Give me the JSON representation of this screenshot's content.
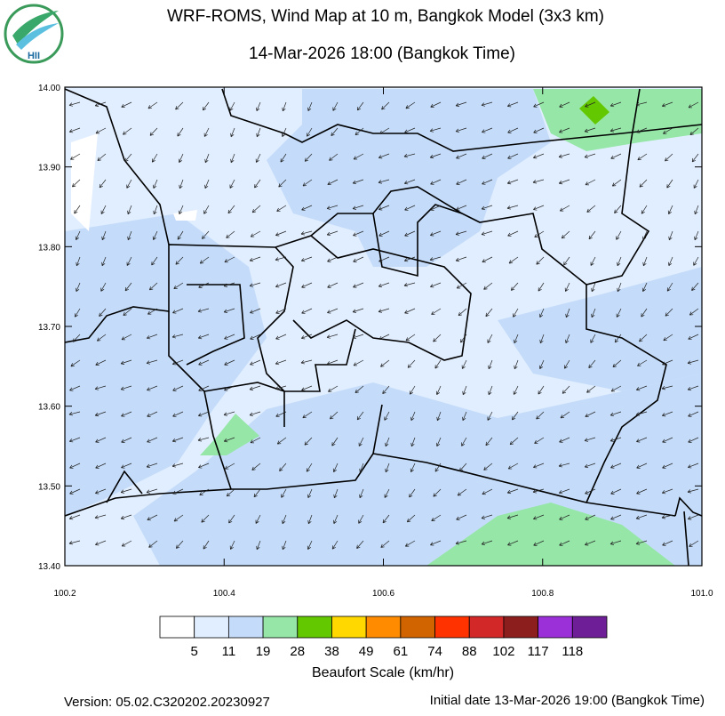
{
  "logo": {
    "text": "HII"
  },
  "header": {
    "title": "WRF-ROMS, Wind Map at 10 m, Bangkok Model (3x3 km)",
    "subtitle": "14-Mar-2026 18:00 (Bangkok Time)"
  },
  "map": {
    "xlim": [
      100.2,
      101.0
    ],
    "ylim": [
      13.4,
      14.0
    ],
    "xticks": [
      100.2,
      100.4,
      100.6,
      100.8,
      {
        "value": 101.0,
        "label": "101.0"
      }
    ],
    "yticks": [
      {
        "value": 14.0,
        "label": "14.00"
      },
      {
        "value": 13.9,
        "label": "13.90"
      },
      {
        "value": 13.8,
        "label": "13.80"
      },
      {
        "value": 13.7,
        "label": "13.70"
      },
      {
        "value": 13.6,
        "label": "13.60"
      },
      {
        "value": 13.5,
        "label": "13.50"
      },
      {
        "value": 13.4,
        "label": "13.40"
      }
    ]
  },
  "colorbar": {
    "title": "Beaufort Scale (km/hr)",
    "colors": [
      "#ffffff",
      "#e1eeff",
      "#c4dcfa",
      "#96e6a8",
      "#64c800",
      "#ffd800",
      "#ff8c00",
      "#d26400",
      "#ff3200",
      "#d22828",
      "#8c1e1e",
      "#9b30d8",
      "#6e1e96"
    ],
    "labels": [
      "5",
      "11",
      "19",
      "28",
      "38",
      "49",
      "61",
      "74",
      "88",
      "102",
      "117",
      "118"
    ]
  },
  "footer": {
    "version": "Version: 05.02.C320202.20230927",
    "initial": "Initial date 13-Mar-2026 19:00 (Bangkok Time)"
  }
}
